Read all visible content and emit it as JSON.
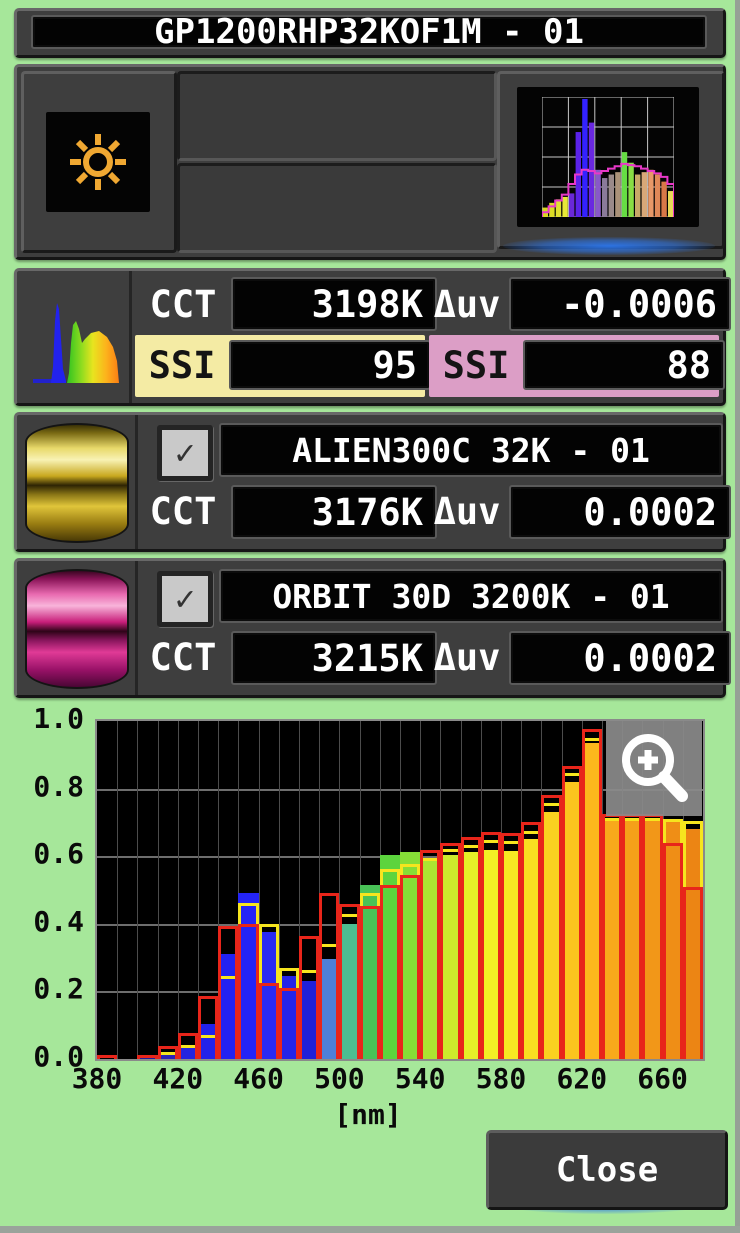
{
  "window": {
    "title": "GP1200RHP32KOF1M - 01",
    "close_label": "Close"
  },
  "measurement": {
    "cct_label": "CCT",
    "cct_value": "3198K",
    "duv_label": "Δuv",
    "duv_value": "-0.0006",
    "ssi1_label": "SSI",
    "ssi1_value": "95",
    "ssi1_color": "#f4eba4",
    "ssi2_label": "SSI",
    "ssi2_value": "88",
    "ssi2_color": "#dc9ec6"
  },
  "references": [
    {
      "name": "ALIEN300C 32K - 01",
      "checked": "✓",
      "cct_label": "CCT",
      "cct_value": "3176K",
      "duv_label": "Δuv",
      "duv_value": "0.0002",
      "outline_color": "#f6e51e"
    },
    {
      "name": "ORBIT 30D 3200K - 01",
      "checked": "✓",
      "cct_label": "CCT",
      "cct_value": "3215K",
      "duv_label": "Δuv",
      "duv_value": "0.0002",
      "outline_color": "#e8251a"
    }
  ],
  "chart_data": {
    "type": "bar",
    "xlabel": "[nm]",
    "x_start": 380,
    "bin_width": 10,
    "x_ticks": [
      380,
      420,
      460,
      500,
      540,
      580,
      620,
      660
    ],
    "y_ticks": [
      0.0,
      0.2,
      0.4,
      0.6,
      0.8,
      1.0
    ],
    "ylim": [
      0,
      1
    ],
    "grid": true,
    "series": [
      {
        "name": "GP1200RHP32KOF1M - 01 measured spectrum (colored fill)",
        "style": "fill",
        "values": [
          0.0,
          0.0,
          0.008,
          0.012,
          0.032,
          0.105,
          0.31,
          0.49,
          0.375,
          0.246,
          0.23,
          0.295,
          0.4,
          0.515,
          0.605,
          0.612,
          0.585,
          0.605,
          0.612,
          0.618,
          0.615,
          0.65,
          0.73,
          0.82,
          0.935,
          0.705,
          0.705,
          0.705,
          0.7,
          0.68
        ]
      },
      {
        "name": "ALIEN300C 32K - 01 (yellow outline)",
        "style": "outline",
        "color": "#f6e51e",
        "values": [
          0.0,
          0.0,
          0.008,
          0.02,
          0.042,
          0.07,
          0.245,
          0.462,
          0.398,
          0.268,
          0.262,
          0.34,
          0.428,
          0.492,
          0.562,
          0.578,
          0.595,
          0.622,
          0.633,
          0.648,
          0.645,
          0.675,
          0.757,
          0.845,
          0.95,
          0.712,
          0.712,
          0.712,
          0.71,
          0.705
        ]
      },
      {
        "name": "ORBIT 30D 3200K - 01 (red outline)",
        "style": "outline",
        "color": "#e8251a",
        "values": [
          0.01,
          0.0,
          0.012,
          0.038,
          0.078,
          0.185,
          0.395,
          0.4,
          0.225,
          0.21,
          0.364,
          0.49,
          0.458,
          0.452,
          0.515,
          0.545,
          0.618,
          0.64,
          0.657,
          0.672,
          0.668,
          0.7,
          0.782,
          0.868,
          0.975,
          0.725,
          0.725,
          0.725,
          0.64,
          0.508
        ]
      }
    ],
    "fill_colors": [
      "#1a1a80",
      "#1a1a80",
      "#201a9a",
      "#2a22b8",
      "#2424e0",
      "#2222ea",
      "#2222f2",
      "#2424f6",
      "#2a2af2",
      "#2424e8",
      "#2020d8",
      "#4e80d8",
      "#4cbd91",
      "#49c257",
      "#5cd43d",
      "#86dd37",
      "#ace532",
      "#cdeb2c",
      "#e6ef28",
      "#f3ef25",
      "#f7e923",
      "#f9df21",
      "#fad220",
      "#fbc51e",
      "#fcb81c",
      "#f8a91b",
      "#f5a019",
      "#f29718",
      "#ef8e16",
      "#ec8514"
    ]
  },
  "thumbnail": {
    "bars": {
      "heights": [
        0.08,
        0.12,
        0.15,
        0.17,
        0.2,
        0.72,
        1.0,
        0.8,
        0.4,
        0.33,
        0.36,
        0.38,
        0.55,
        0.46,
        0.36,
        0.38,
        0.4,
        0.36,
        0.3,
        0.22
      ],
      "colors": [
        "#d8d820",
        "#dcdc24",
        "#e0e030",
        "#e8e838",
        "#6a28d8",
        "#5a22e8",
        "#3322ff",
        "#6a28e0",
        "#8858c8",
        "#8a7a9a",
        "#9a8a8a",
        "#ab9279",
        "#66dd44",
        "#88dd44",
        "#c8a868",
        "#d8a878",
        "#e89868",
        "#e08858",
        "#d87848",
        "#e8d858"
      ]
    },
    "outline": {
      "color": "#e838c8",
      "heights": [
        0.04,
        0.09,
        0.14,
        0.19,
        0.28,
        0.36,
        0.4,
        0.39,
        0.37,
        0.39,
        0.41,
        0.43,
        0.45,
        0.44,
        0.43,
        0.41,
        0.39,
        0.37,
        0.34,
        0.28
      ]
    }
  }
}
